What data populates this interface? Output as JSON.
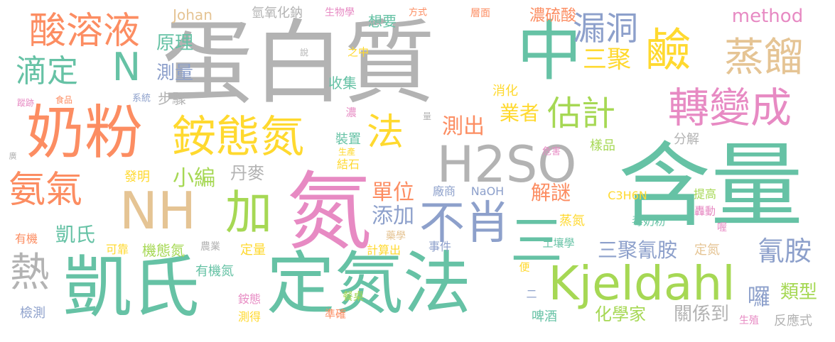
{
  "palette": {
    "teal": "#66c2a5",
    "orange": "#fc8d62",
    "blue": "#8da0cb",
    "pink": "#e78ac3",
    "green": "#a6d854",
    "yellow": "#ffd92f",
    "tan": "#e5c494",
    "gray": "#b3b3b3"
  },
  "words": [
    {
      "t": "蛋白質",
      "c": "gray"
    },
    {
      "t": "含量",
      "c": "teal"
    },
    {
      "t": "氮",
      "c": "pink"
    },
    {
      "t": "凱氏",
      "c": "teal"
    },
    {
      "t": "定氮法",
      "c": "teal"
    },
    {
      "t": "中",
      "c": "teal"
    },
    {
      "t": "奶粉",
      "c": "orange"
    },
    {
      "t": "H2SO",
      "c": "gray"
    },
    {
      "t": "銨態氮",
      "c": "yellow"
    },
    {
      "t": "NH",
      "c": "tan"
    },
    {
      "t": "Kjeldahl",
      "c": "green"
    },
    {
      "t": "酸溶液",
      "c": "orange"
    },
    {
      "t": "轉變成",
      "c": "pink"
    },
    {
      "t": "蒸餾",
      "c": "tan"
    },
    {
      "t": "鹼",
      "c": "yellow"
    },
    {
      "t": "加",
      "c": "green"
    },
    {
      "t": "不肖",
      "c": "blue"
    },
    {
      "t": "法",
      "c": "yellow"
    },
    {
      "t": "氨氣",
      "c": "orange"
    },
    {
      "t": "熱",
      "c": "gray"
    },
    {
      "t": "估計",
      "c": "green"
    },
    {
      "t": "漏洞",
      "c": "blue"
    },
    {
      "t": "三聚",
      "c": "yellow"
    },
    {
      "t": "滴定",
      "c": "teal"
    },
    {
      "t": "N",
      "c": "teal"
    },
    {
      "t": "三",
      "c": "teal"
    },
    {
      "t": "氰胺",
      "c": "blue"
    },
    {
      "t": "method",
      "c": "pink"
    },
    {
      "t": "原理",
      "c": "teal"
    },
    {
      "t": "測量",
      "c": "blue"
    },
    {
      "t": "單位",
      "c": "orange"
    },
    {
      "t": "業者",
      "c": "yellow"
    },
    {
      "t": "測出",
      "c": "orange"
    },
    {
      "t": "添加",
      "c": "blue"
    },
    {
      "t": "解謎",
      "c": "orange"
    },
    {
      "t": "小編",
      "c": "green"
    },
    {
      "t": "丹麥",
      "c": "gray"
    },
    {
      "t": "三聚氰胺",
      "c": "blue"
    },
    {
      "t": "化學家",
      "c": "green"
    },
    {
      "t": "關係到",
      "c": "gray"
    },
    {
      "t": "類型",
      "c": "green"
    },
    {
      "t": "囉",
      "c": "blue"
    },
    {
      "t": "凱氏",
      "c": "teal"
    },
    {
      "t": "濃硫酸",
      "c": "orange"
    },
    {
      "t": "想要",
      "c": "teal"
    },
    {
      "t": "氫氧化鈉",
      "c": "gray"
    },
    {
      "t": "Johan",
      "c": "tan"
    },
    {
      "t": "步驟",
      "c": "gray"
    },
    {
      "t": "收集",
      "c": "teal"
    },
    {
      "t": "消化",
      "c": "yellow"
    },
    {
      "t": "分解",
      "c": "gray"
    },
    {
      "t": "樣品",
      "c": "green"
    },
    {
      "t": "裝置",
      "c": "teal"
    },
    {
      "t": "結石",
      "c": "yellow"
    },
    {
      "t": "發明",
      "c": "yellow"
    },
    {
      "t": "廠商",
      "c": "blue"
    },
    {
      "t": "NaOH",
      "c": "blue"
    },
    {
      "t": "C3H6N",
      "c": "yellow"
    },
    {
      "t": "提高",
      "c": "green"
    },
    {
      "t": "轟動",
      "c": "pink"
    },
    {
      "t": "蒸氮",
      "c": "yellow"
    },
    {
      "t": "毒奶粉",
      "c": "teal"
    },
    {
      "t": "喔",
      "c": "pink"
    },
    {
      "t": "機態氮",
      "c": "green"
    },
    {
      "t": "可靠",
      "c": "yellow"
    },
    {
      "t": "農業",
      "c": "gray"
    },
    {
      "t": "定量",
      "c": "yellow"
    },
    {
      "t": "計算出",
      "c": "yellow"
    },
    {
      "t": "事件",
      "c": "blue"
    },
    {
      "t": "藥學",
      "c": "tan"
    },
    {
      "t": "土壤學",
      "c": "teal"
    },
    {
      "t": "定氮",
      "c": "tan"
    },
    {
      "t": "有機氮",
      "c": "teal"
    },
    {
      "t": "銨態",
      "c": "pink"
    },
    {
      "t": "測得",
      "c": "yellow"
    },
    {
      "t": "餐桌",
      "c": "green"
    },
    {
      "t": "準確",
      "c": "orange"
    },
    {
      "t": "便",
      "c": "yellow"
    },
    {
      "t": "二",
      "c": "blue"
    },
    {
      "t": "啤酒",
      "c": "teal"
    },
    {
      "t": "生殖",
      "c": "pink"
    },
    {
      "t": "反應式",
      "c": "gray"
    },
    {
      "t": "檢測",
      "c": "blue"
    },
    {
      "t": "有機",
      "c": "orange"
    },
    {
      "t": "系統",
      "c": "blue"
    },
    {
      "t": "食品",
      "c": "orange"
    },
    {
      "t": "蹤跡",
      "c": "pink"
    },
    {
      "t": "廣",
      "c": "gray"
    },
    {
      "t": "說",
      "c": "gray"
    },
    {
      "t": "之中",
      "c": "yellow"
    },
    {
      "t": "生物學",
      "c": "pink"
    },
    {
      "t": "方式",
      "c": "orange"
    },
    {
      "t": "層面",
      "c": "orange"
    },
    {
      "t": "濃",
      "c": "pink"
    },
    {
      "t": "量",
      "c": "gray"
    },
    {
      "t": "生產",
      "c": "yellow"
    },
    {
      "t": "危害",
      "c": "pink"
    }
  ]
}
